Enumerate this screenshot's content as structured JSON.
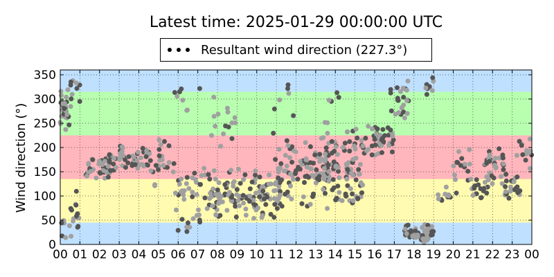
{
  "chart_data": {
    "type": "scatter",
    "title": "Latest time: 2025-01-29 00:00:00 UTC",
    "xlabel": "",
    "ylabel": "Wind direction (°)",
    "xlim": [
      0,
      24
    ],
    "ylim": [
      0,
      360
    ],
    "x_ticks": [
      "00",
      "01",
      "02",
      "03",
      "04",
      "05",
      "06",
      "07",
      "08",
      "09",
      "10",
      "11",
      "12",
      "13",
      "14",
      "15",
      "16",
      "17",
      "18",
      "19",
      "20",
      "21",
      "22",
      "23",
      "00"
    ],
    "y_ticks": [
      0,
      50,
      100,
      150,
      200,
      250,
      300,
      350
    ],
    "grid": true,
    "legend": {
      "placement": "top-center",
      "entries": [
        {
          "label": "Resultant wind direction (227.3°)",
          "color": "#000000"
        }
      ]
    },
    "background_bands": [
      {
        "from": 0,
        "to": 45,
        "color": "#bfe0ff"
      },
      {
        "from": 45,
        "to": 135,
        "color": "#fffbb0"
      },
      {
        "from": 135,
        "to": 225,
        "color": "#ffb6bc"
      },
      {
        "from": 225,
        "to": 315,
        "color": "#b8ffb0"
      },
      {
        "from": 315,
        "to": 360,
        "color": "#bfe0ff"
      }
    ],
    "series": [
      {
        "name": "Resultant wind direction (227.3°)",
        "color_dark": "#555555",
        "color_light": "#a0a0a0",
        "clusters": [
          {
            "x": [
              0.0,
              0.45
            ],
            "y": [
              220,
              340
            ],
            "n": 30
          },
          {
            "x": [
              0.0,
              0.5
            ],
            "y": [
              0,
              60
            ],
            "n": 6
          },
          {
            "x": [
              0.5,
              1.0
            ],
            "y": [
              0,
              120
            ],
            "n": 14
          },
          {
            "x": [
              0.5,
              1.0
            ],
            "y": [
              280,
              355
            ],
            "n": 10
          },
          {
            "x": [
              1.3,
              2.6
            ],
            "y": [
              130,
              185
            ],
            "n": 38
          },
          {
            "x": [
              2.5,
              4.6
            ],
            "y": [
              150,
              210
            ],
            "n": 55
          },
          {
            "x": [
              4.6,
              5.7
            ],
            "y": [
              110,
              240
            ],
            "n": 22
          },
          {
            "x": [
              5.7,
              7.7
            ],
            "y": [
              20,
              180
            ],
            "n": 45
          },
          {
            "x": [
              5.7,
              7.5
            ],
            "y": [
              250,
              340
            ],
            "n": 8
          },
          {
            "x": [
              7.6,
              11.2
            ],
            "y": [
              40,
              160
            ],
            "n": 130
          },
          {
            "x": [
              7.6,
              9.0
            ],
            "y": [
              180,
              330
            ],
            "n": 15
          },
          {
            "x": [
              10.8,
              14.6
            ],
            "y": [
              70,
              240
            ],
            "n": 150
          },
          {
            "x": [
              10.9,
              14.2
            ],
            "y": [
              240,
              360
            ],
            "n": 12
          },
          {
            "x": [
              14.5,
              15.4
            ],
            "y": [
              60,
              180
            ],
            "n": 30
          },
          {
            "x": [
              14.6,
              16.2
            ],
            "y": [
              160,
              260
            ],
            "n": 30
          },
          {
            "x": [
              15.8,
              17.0
            ],
            "y": [
              180,
              260
            ],
            "n": 32
          },
          {
            "x": [
              16.8,
              17.8
            ],
            "y": [
              250,
              355
            ],
            "n": 26
          },
          {
            "x": [
              17.5,
              19.0
            ],
            "y": [
              0,
              45
            ],
            "n": 60
          },
          {
            "x": [
              18.6,
              19.0
            ],
            "y": [
              300,
              355
            ],
            "n": 8
          },
          {
            "x": [
              19.2,
              20.0
            ],
            "y": [
              80,
              125
            ],
            "n": 12
          },
          {
            "x": [
              20.0,
              20.9
            ],
            "y": [
              90,
              210
            ],
            "n": 16
          },
          {
            "x": [
              20.9,
              21.8
            ],
            "y": [
              90,
              140
            ],
            "n": 20
          },
          {
            "x": [
              21.6,
              22.6
            ],
            "y": [
              120,
              210
            ],
            "n": 35
          },
          {
            "x": [
              22.6,
              23.4
            ],
            "y": [
              80,
              160
            ],
            "n": 22
          },
          {
            "x": [
              23.2,
              24.0
            ],
            "y": [
              150,
              230
            ],
            "n": 14
          }
        ]
      }
    ]
  }
}
